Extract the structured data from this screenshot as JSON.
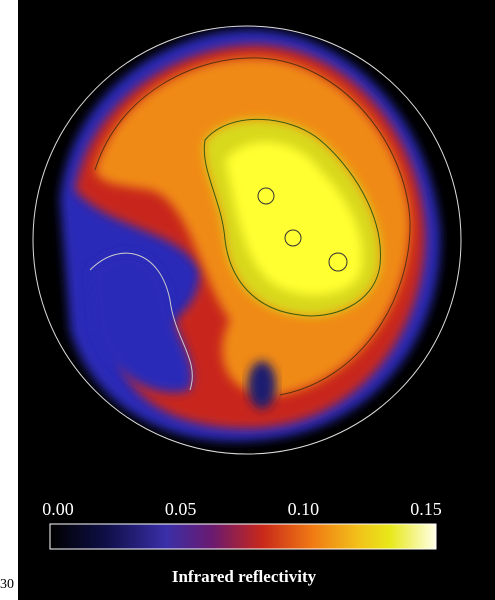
{
  "colorbar": {
    "label": "Infrared reflectivity",
    "ticks": [
      {
        "value": 0,
        "label": "0.00"
      },
      {
        "value": 0.05,
        "label": "0.05"
      },
      {
        "value": 0.1,
        "label": "0.10"
      },
      {
        "value": 0.15,
        "label": "0.15"
      }
    ]
  },
  "page_number": "30"
}
